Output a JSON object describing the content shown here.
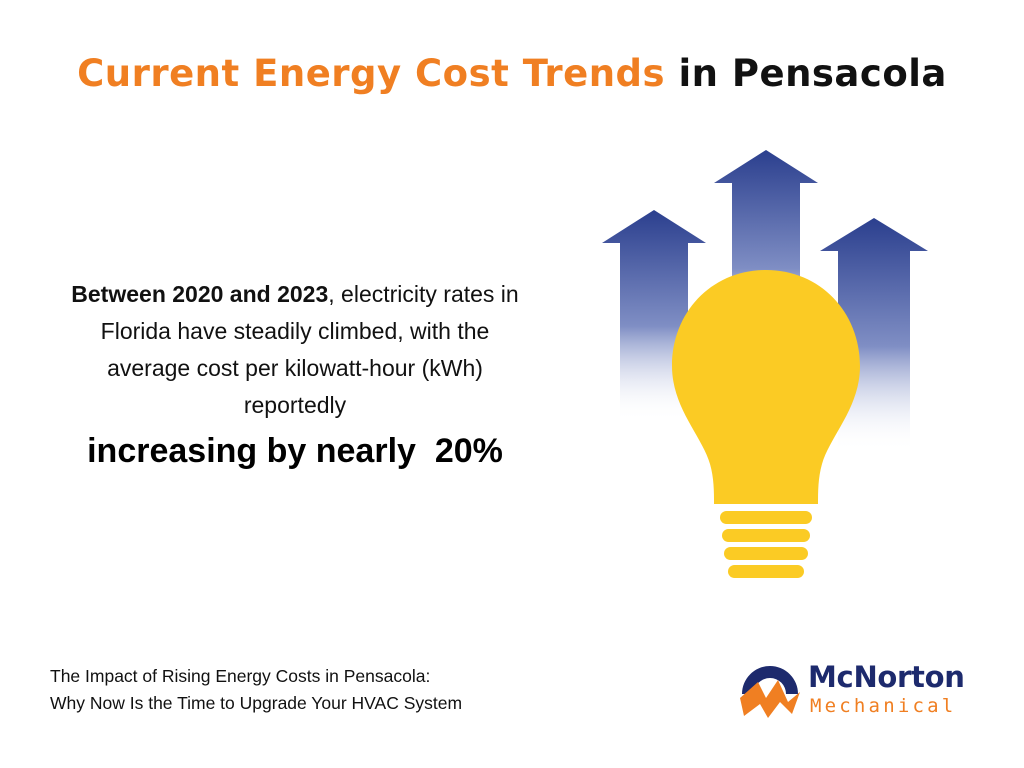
{
  "title": {
    "accent": "Current Energy Cost Trends",
    "rest": "in Pensacola"
  },
  "body": {
    "bold_lead": "Between 2020 and 2023",
    "text": ", electricity rates in Florida have steadily climbed, with the average cost per kilowatt-hour (kWh) reportedly",
    "highlight": "increasing by nearly  20%"
  },
  "footer": {
    "line1": "The Impact of Rising Energy Costs in Pensacola:",
    "line2": "Why Now Is the Time to Upgrade Your HVAC System"
  },
  "logo": {
    "name": "McNorton",
    "sub": "Mechanical"
  },
  "colors": {
    "accent": "#F07F22",
    "bulb": "#FBCB24",
    "arrow": "#2B3F8E",
    "brand_navy": "#1d2a6d"
  },
  "icons": [
    "up-arrow-icon",
    "light-bulb-icon",
    "mcnorton-logo-icon"
  ]
}
